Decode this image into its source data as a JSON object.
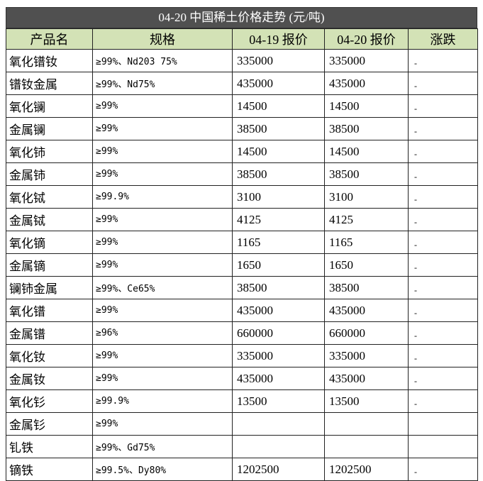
{
  "title": "04-20 中国稀土价格走势 (元/吨)",
  "table": {
    "headers": [
      "产品名",
      "规格",
      "04-19 报价",
      "04-20 报价",
      "涨跌"
    ],
    "rows": [
      [
        "氧化镨钕",
        "≥99%、Nd203 75%",
        335000,
        335000,
        "-"
      ],
      [
        "镨钕金属",
        "≥99%、Nd75%",
        435000,
        435000,
        "-"
      ],
      [
        "氧化镧",
        "≥99%",
        14500,
        14500,
        "-"
      ],
      [
        "金属镧",
        "≥99%",
        38500,
        38500,
        "-"
      ],
      [
        "氧化铈",
        "≥99%",
        14500,
        14500,
        "-"
      ],
      [
        "金属铈",
        "≥99%",
        38500,
        38500,
        "-"
      ],
      [
        "氧化铽",
        "≥99.9%",
        3100,
        3100,
        "-"
      ],
      [
        "金属铽",
        "≥99%",
        4125,
        4125,
        "-"
      ],
      [
        "氧化镝",
        "≥99%",
        1165,
        1165,
        "-"
      ],
      [
        "金属镝",
        "≥99%",
        1650,
        1650,
        "-"
      ],
      [
        "镧铈金属",
        "≥99%、Ce65%",
        38500,
        38500,
        "-"
      ],
      [
        "氧化镨",
        "≥99%",
        435000,
        435000,
        "-"
      ],
      [
        "金属镨",
        "≥96%",
        660000,
        660000,
        "-"
      ],
      [
        "氧化钕",
        "≥99%",
        335000,
        335000,
        "-"
      ],
      [
        "金属钕",
        "≥99%",
        435000,
        435000,
        "-"
      ],
      [
        "氧化钐",
        "≥99.9%",
        13500,
        13500,
        "-"
      ],
      [
        "金属钐",
        "≥99%",
        null,
        null,
        null
      ],
      [
        "钆铁",
        "≥99%、Gd75%",
        null,
        null,
        null
      ],
      [
        "镝铁",
        "≥99.5%、Dy80%",
        1202500,
        1202500,
        "-"
      ]
    ]
  }
}
